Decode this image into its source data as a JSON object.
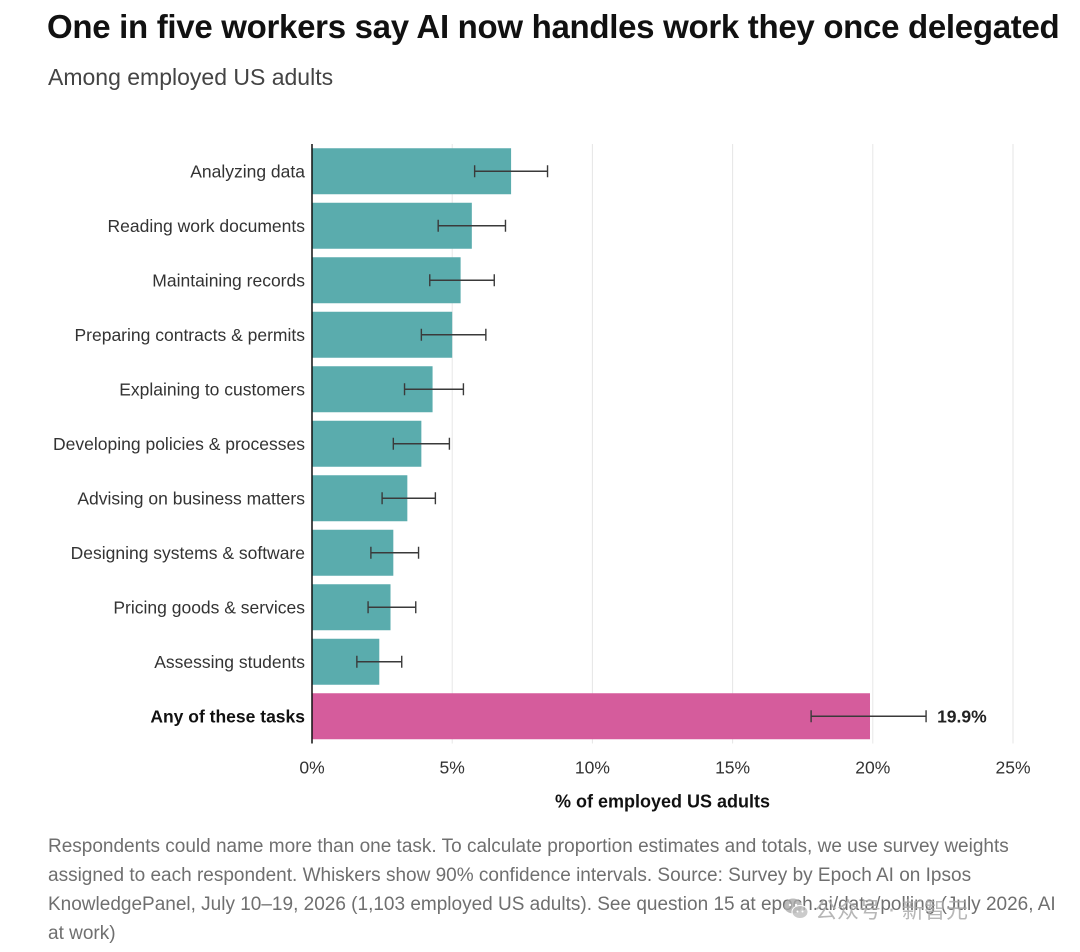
{
  "header": {
    "title": "One in five workers say AI now handles work they once delegated",
    "subtitle": "Among employed US adults"
  },
  "chart_data": {
    "type": "bar",
    "orientation": "horizontal",
    "categories": [
      "Analyzing data",
      "Reading work documents",
      "Maintaining records",
      "Preparing contracts & permits",
      "Explaining to customers",
      "Developing policies & processes",
      "Advising on business matters",
      "Designing systems & software",
      "Pricing goods & services",
      "Assessing students",
      "Any of these tasks"
    ],
    "values": [
      7.1,
      5.7,
      5.3,
      5.0,
      4.3,
      3.9,
      3.4,
      2.9,
      2.8,
      2.4,
      19.9
    ],
    "ci_low": [
      5.8,
      4.5,
      4.2,
      3.9,
      3.3,
      2.9,
      2.5,
      2.1,
      2.0,
      1.6,
      17.8
    ],
    "ci_high": [
      8.4,
      6.9,
      6.5,
      6.2,
      5.4,
      4.9,
      4.4,
      3.8,
      3.7,
      3.2,
      21.9
    ],
    "highlight_index": 10,
    "highlight_label": "19.9%",
    "xlabel": "% of employed US adults",
    "xlim": [
      0,
      25
    ],
    "xticks": [
      0,
      5,
      10,
      15,
      20,
      25
    ],
    "xtick_labels": [
      "0%",
      "5%",
      "10%",
      "15%",
      "20%",
      "25%"
    ],
    "grid": "vertical",
    "colors": {
      "bar": "#5aacad",
      "highlight": "#d55c9c",
      "whisker": "#3a3a3a",
      "grid": "#e6e6e6",
      "axis": "#111111"
    }
  },
  "footnote": "Respondents could name more than one task. To calculate proportion estimates and totals, we use survey weights assigned to each respondent. Whiskers show 90% confidence intervals. Source: Survey by Epoch AI on Ipsos KnowledgePanel, July 10–19, 2026 (1,103 employed US adults). See question 15 at epoch.ai/data/polling (July 2026, AI at work)",
  "watermark": {
    "text": "公众号 · 新智元",
    "icon": "wechat-icon"
  }
}
